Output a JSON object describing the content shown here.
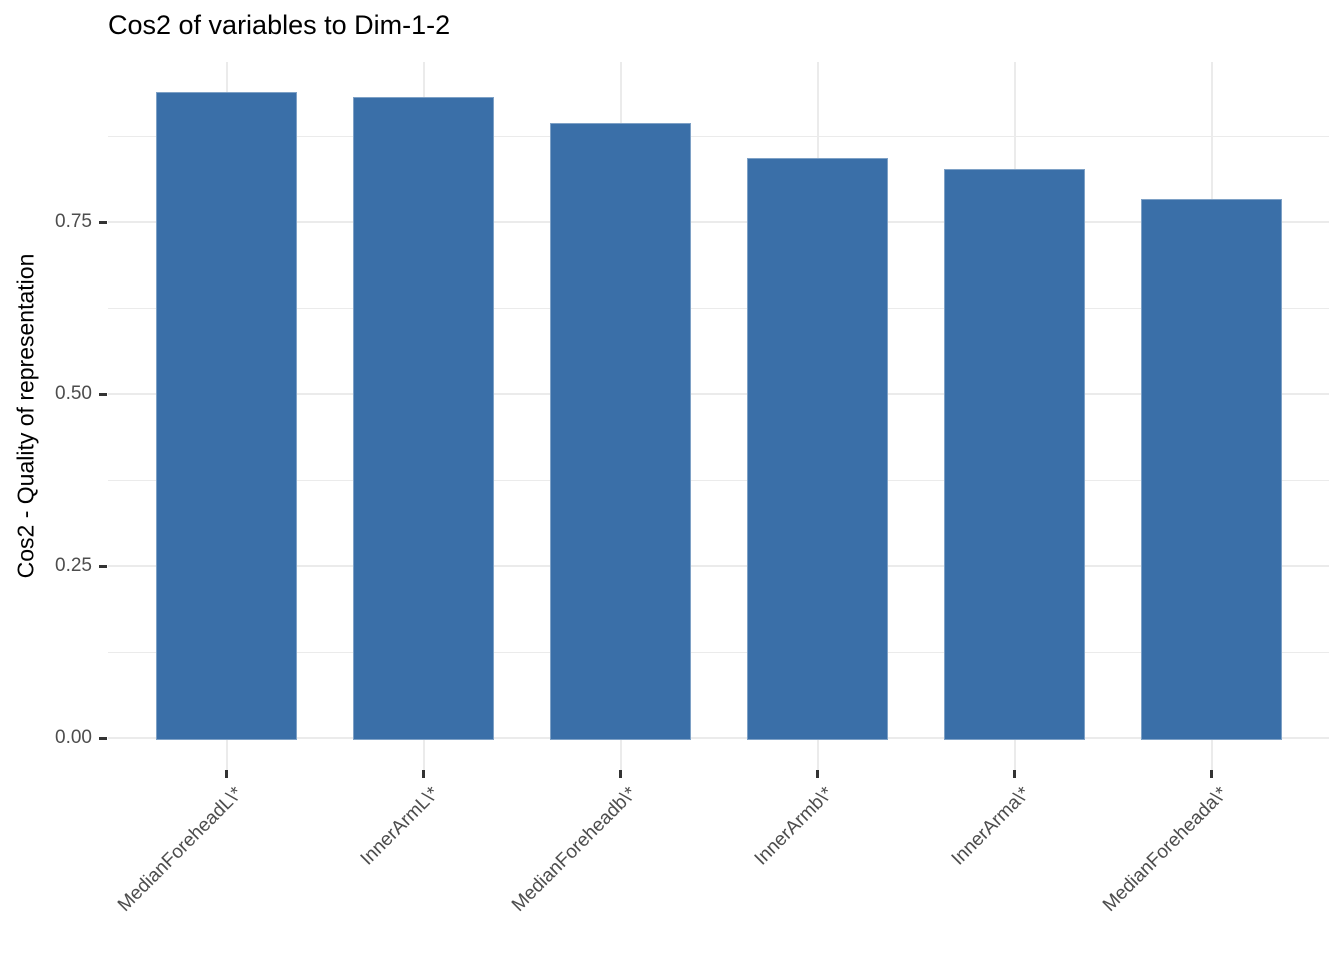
{
  "chart_data": {
    "type": "bar",
    "title": "Cos2 of variables to Dim-1-2",
    "xlabel": "",
    "ylabel": "Cos2 - Quality of representation",
    "categories": [
      "MedianForeheadL\\*",
      "InnerArmL\\*",
      "MedianForeheadb\\*",
      "InnerArmb\\*",
      "InnerArma\\*",
      "MedianForeheada\\*"
    ],
    "values": [
      0.939,
      0.932,
      0.894,
      0.843,
      0.827,
      0.783
    ],
    "yticks": [
      "0.00",
      "0.25",
      "0.50",
      "0.75"
    ],
    "ytick_values": [
      0,
      0.25,
      0.5,
      0.75
    ],
    "yminor_values": [
      0.125,
      0.375,
      0.625,
      0.875
    ],
    "ylim": [
      -0.047,
      0.982
    ],
    "x_label_rotation": 45,
    "grid": true,
    "legend_position": "none"
  },
  "style": {
    "bar_fill": "#3A6FA8",
    "grid_color": "#EBEBEB",
    "axis_text_color": "#4D4D4D",
    "tick_mark_color": "#333333",
    "title_color": "#000000",
    "background": "#FFFFFF"
  }
}
